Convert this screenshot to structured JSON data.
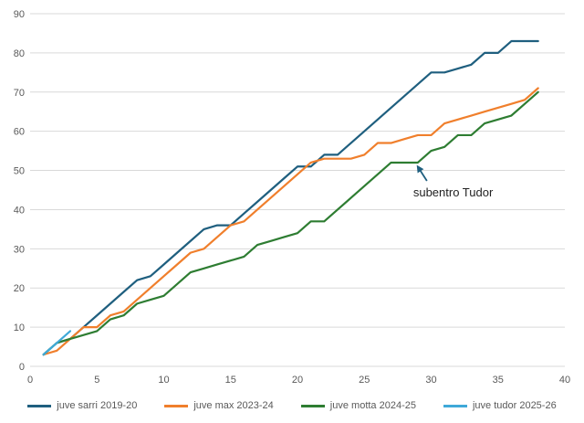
{
  "chart_data": {
    "type": "line",
    "title": "",
    "xlabel": "",
    "ylabel": "",
    "xlim": [
      0,
      40
    ],
    "ylim": [
      0,
      90
    ],
    "x_ticks": [
      0,
      5,
      10,
      15,
      20,
      25,
      30,
      35,
      40
    ],
    "y_ticks": [
      0,
      10,
      20,
      30,
      40,
      50,
      60,
      70,
      80,
      90
    ],
    "grid": "horizontal",
    "legend_position": "bottom",
    "series": [
      {
        "name": "juve sarri 2019-20",
        "color": "#1f5f7f",
        "x": [
          1,
          2,
          3,
          4,
          5,
          6,
          7,
          8,
          9,
          10,
          11,
          12,
          13,
          14,
          15,
          16,
          17,
          18,
          19,
          20,
          21,
          22,
          23,
          24,
          25,
          26,
          27,
          28,
          29,
          30,
          31,
          32,
          33,
          34,
          35,
          36,
          37,
          38
        ],
        "values": [
          3,
          6,
          7,
          10,
          13,
          16,
          19,
          22,
          23,
          26,
          29,
          32,
          35,
          36,
          36,
          39,
          42,
          45,
          48,
          51,
          51,
          54,
          54,
          57,
          60,
          63,
          66,
          69,
          72,
          75,
          75,
          76,
          77,
          80,
          80,
          83,
          83,
          83
        ]
      },
      {
        "name": "juve max 2023-24",
        "color": "#f07f2c",
        "x": [
          1,
          2,
          3,
          4,
          5,
          6,
          7,
          8,
          9,
          10,
          11,
          12,
          13,
          14,
          15,
          16,
          17,
          18,
          19,
          20,
          21,
          22,
          23,
          24,
          25,
          26,
          27,
          28,
          29,
          30,
          31,
          32,
          33,
          34,
          35,
          36,
          37,
          38
        ],
        "values": [
          3,
          4,
          7,
          10,
          10,
          13,
          14,
          17,
          20,
          23,
          26,
          29,
          30,
          33,
          36,
          37,
          40,
          43,
          46,
          49,
          52,
          53,
          53,
          53,
          54,
          57,
          57,
          58,
          59,
          59,
          62,
          63,
          64,
          65,
          66,
          67,
          68,
          71
        ]
      },
      {
        "name": "juve motta 2024-25",
        "color": "#2e7d32",
        "x": [
          1,
          2,
          3,
          4,
          5,
          6,
          7,
          8,
          9,
          10,
          11,
          12,
          13,
          14,
          15,
          16,
          17,
          18,
          19,
          20,
          21,
          22,
          23,
          24,
          25,
          26,
          27,
          28,
          29,
          30,
          31,
          32,
          33,
          34,
          35,
          36,
          37,
          38
        ],
        "values": [
          3,
          6,
          7,
          8,
          9,
          12,
          13,
          16,
          17,
          18,
          21,
          24,
          25,
          26,
          27,
          28,
          31,
          32,
          33,
          34,
          37,
          37,
          40,
          43,
          46,
          49,
          52,
          52,
          52,
          55,
          56,
          59,
          59,
          62,
          63,
          64,
          67,
          70
        ]
      },
      {
        "name": "juve tudor 2025-26",
        "color": "#3fa9d8",
        "x": [
          1,
          2,
          3
        ],
        "values": [
          3,
          6,
          9
        ]
      }
    ],
    "annotations": [
      {
        "text": "subentro Tudor",
        "x": 29,
        "y": 52,
        "arrow_color": "#1f5f7f"
      }
    ]
  }
}
